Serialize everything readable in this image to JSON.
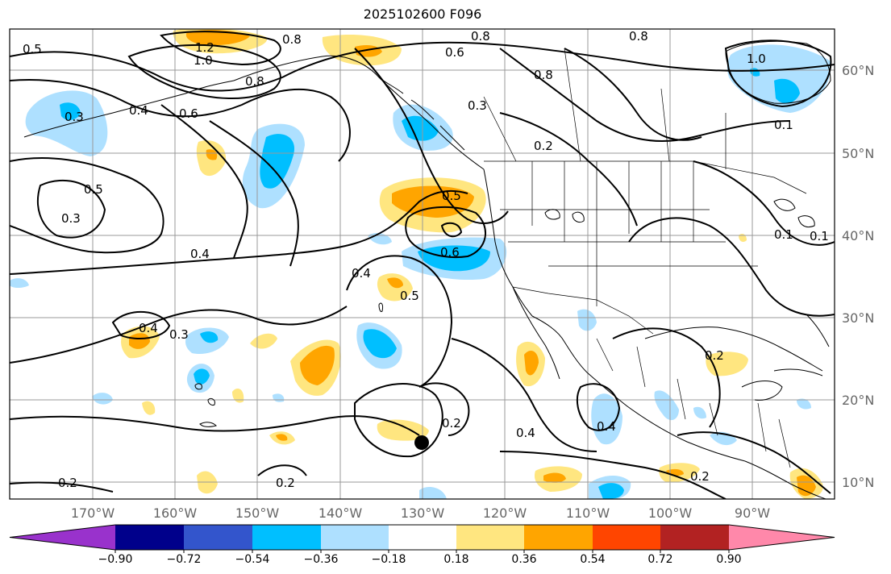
{
  "title": "2025102600 F096",
  "lat_labels": [
    "60°N",
    "50°N",
    "40°N",
    "30°N",
    "20°N",
    "10°N"
  ],
  "lon_labels": [
    "170°W",
    "160°W",
    "150°W",
    "140°W",
    "130°W",
    "120°W",
    "110°W",
    "100°W",
    "90°W"
  ],
  "contour_labels": [
    "0.5",
    "1.2",
    "1.0",
    "0.8",
    "0.8",
    "0.8",
    "0.6",
    "0.8",
    "0.8",
    "1.0",
    "0.3",
    "0.4",
    "0.6",
    "0.3",
    "0.2",
    "0.5",
    "0.3",
    "0.5",
    "0.4",
    "0.6",
    "0.4",
    "0.5",
    "0.4",
    "0.3",
    "0.2",
    "0.2",
    "0.4",
    "0.4",
    "0.2",
    "0.2",
    "0.2",
    "0.1",
    "0.1",
    "0.1"
  ],
  "colorbar": {
    "tick_labels": [
      "−0.90",
      "−0.72",
      "−0.54",
      "−0.36",
      "−0.18",
      "0.18",
      "0.36",
      "0.54",
      "0.72",
      "0.90"
    ],
    "colors": [
      "#9932cc",
      "#00008b",
      "#3355cc",
      "#00bfff",
      "#aee0ff",
      "#ffffff",
      "#ffe680",
      "#ffa500",
      "#ff4500",
      "#b22222",
      "#ff88aa",
      "#ff88aa"
    ]
  },
  "colors": {
    "light_blue": "#aee0ff",
    "blue": "#00bfff",
    "yellow": "#ffe680",
    "orange": "#ffa500",
    "storm_marker": "#000000"
  }
}
